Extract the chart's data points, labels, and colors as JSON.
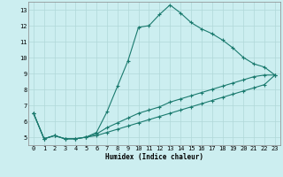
{
  "xlabel": "Humidex (Indice chaleur)",
  "bg_color": "#cceef0",
  "grid_color": "#b0d8d8",
  "line_color": "#1a7a6e",
  "xlim": [
    -0.5,
    23.5
  ],
  "ylim": [
    4.5,
    13.5
  ],
  "xticks": [
    0,
    1,
    2,
    3,
    4,
    5,
    6,
    7,
    8,
    9,
    10,
    11,
    12,
    13,
    14,
    15,
    16,
    17,
    18,
    19,
    20,
    21,
    22,
    23
  ],
  "yticks": [
    5,
    6,
    7,
    8,
    9,
    10,
    11,
    12,
    13
  ],
  "series1_x": [
    0,
    1,
    2,
    3,
    4,
    5,
    6,
    7,
    8,
    9,
    10,
    11,
    12,
    13,
    14,
    15,
    16,
    17,
    18,
    19,
    20,
    21,
    22,
    23
  ],
  "series1_y": [
    6.5,
    4.9,
    5.1,
    4.9,
    4.9,
    5.0,
    5.3,
    6.6,
    8.2,
    9.8,
    11.9,
    12.0,
    12.7,
    13.3,
    12.8,
    12.2,
    11.8,
    11.5,
    11.1,
    10.6,
    10.0,
    9.6,
    9.4,
    8.9
  ],
  "series2_x": [
    0,
    1,
    2,
    3,
    4,
    5,
    6,
    7,
    8,
    9,
    10,
    11,
    12,
    13,
    14,
    15,
    16,
    17,
    18,
    19,
    20,
    21,
    22,
    23
  ],
  "series2_y": [
    6.5,
    4.9,
    5.1,
    4.9,
    4.9,
    5.0,
    5.2,
    5.6,
    5.9,
    6.2,
    6.5,
    6.7,
    6.9,
    7.2,
    7.4,
    7.6,
    7.8,
    8.0,
    8.2,
    8.4,
    8.6,
    8.8,
    8.9,
    8.9
  ],
  "series3_x": [
    0,
    1,
    2,
    3,
    4,
    5,
    6,
    7,
    8,
    9,
    10,
    11,
    12,
    13,
    14,
    15,
    16,
    17,
    18,
    19,
    20,
    21,
    22,
    23
  ],
  "series3_y": [
    6.5,
    4.9,
    5.1,
    4.9,
    4.9,
    5.0,
    5.1,
    5.3,
    5.5,
    5.7,
    5.9,
    6.1,
    6.3,
    6.5,
    6.7,
    6.9,
    7.1,
    7.3,
    7.5,
    7.7,
    7.9,
    8.1,
    8.3,
    8.9
  ],
  "xlabel_fontsize": 5.5,
  "tick_fontsize": 5.0,
  "marker_size": 3.0,
  "line_width": 0.8
}
